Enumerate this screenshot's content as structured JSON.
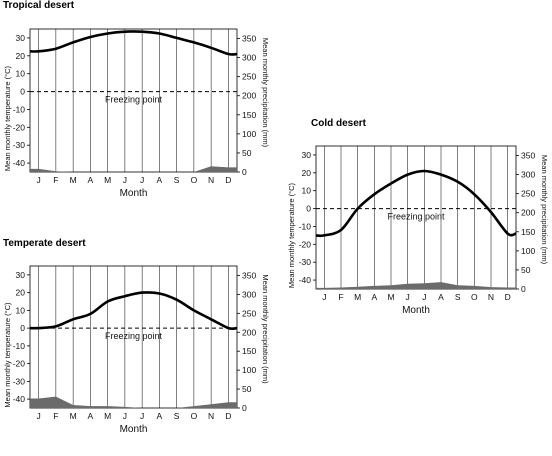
{
  "chart_data": [
    {
      "type": "line",
      "title": "Tropical desert",
      "xlabel": "Month",
      "ylabel_left": "Mean monthly temperature (°C)",
      "ylabel_right": "Mean monthly precipitation (mm)",
      "categories": [
        "J",
        "F",
        "M",
        "A",
        "M",
        "J",
        "J",
        "A",
        "S",
        "O",
        "N",
        "D"
      ],
      "ylim": [
        -45,
        35
      ],
      "y_ticks": [
        -40,
        -30,
        -20,
        -10,
        0,
        10,
        20,
        30
      ],
      "y2lim": [
        0,
        375
      ],
      "y2_ticks": [
        0,
        50,
        100,
        150,
        200,
        250,
        300,
        350
      ],
      "series": [
        {
          "kind": "temperature",
          "values": [
            22.5,
            24,
            27.5,
            30.5,
            32.5,
            33.5,
            33.5,
            32.5,
            30,
            27.5,
            24.5,
            21
          ]
        },
        {
          "kind": "precipitation",
          "values": [
            8,
            2,
            0,
            0,
            0,
            0,
            0,
            0,
            0,
            0,
            15,
            12
          ]
        }
      ],
      "freezing_label": "Freezing point"
    },
    {
      "type": "line",
      "title": "Cold desert",
      "xlabel": "Month",
      "ylabel_left": "Mean monthly temperature (°C)",
      "ylabel_right": "Mean monthly precipitation (mm)",
      "categories": [
        "J",
        "F",
        "M",
        "A",
        "M",
        "J",
        "J",
        "A",
        "S",
        "O",
        "N",
        "D"
      ],
      "ylim": [
        -45,
        35
      ],
      "y_ticks": [
        -40,
        -30,
        -20,
        -10,
        0,
        10,
        20,
        30
      ],
      "y2lim": [
        0,
        375
      ],
      "y2_ticks": [
        0,
        50,
        100,
        150,
        200,
        250,
        300,
        350
      ],
      "series": [
        {
          "kind": "temperature",
          "values": [
            -15,
            -12,
            0,
            8,
            14,
            19,
            21,
            19,
            15,
            8,
            -2,
            -14
          ]
        },
        {
          "kind": "precipitation",
          "values": [
            3,
            4,
            6,
            8,
            10,
            14,
            15,
            18,
            10,
            8,
            5,
            4
          ]
        }
      ],
      "freezing_label": "Freezing point"
    },
    {
      "type": "line",
      "title": "Temperate desert",
      "xlabel": "Month",
      "ylabel_left": "Mean monthly temperature (°C)",
      "ylabel_right": "Mean monthly precipitation (mm)",
      "categories": [
        "J",
        "F",
        "M",
        "A",
        "M",
        "J",
        "J",
        "A",
        "S",
        "O",
        "N",
        "D"
      ],
      "ylim": [
        -45,
        35
      ],
      "y_ticks": [
        -40,
        -30,
        -20,
        -10,
        0,
        10,
        20,
        30
      ],
      "y2lim": [
        0,
        375
      ],
      "y2_ticks": [
        0,
        50,
        100,
        150,
        200,
        250,
        300,
        350
      ],
      "series": [
        {
          "kind": "temperature",
          "values": [
            0,
            1,
            5,
            8,
            15,
            18,
            20,
            19.5,
            16,
            10,
            5,
            0
          ]
        },
        {
          "kind": "precipitation",
          "values": [
            25,
            30,
            8,
            5,
            5,
            3,
            0,
            0,
            0,
            5,
            10,
            15
          ]
        }
      ],
      "freezing_label": "Freezing point"
    }
  ]
}
